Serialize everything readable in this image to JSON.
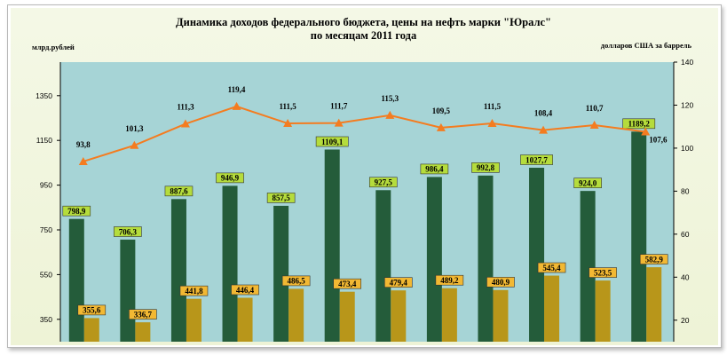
{
  "colors": {
    "plot_bg": "#a6d4d6",
    "revenue_bar": "#245c3a",
    "revenue_label_bg": "#b5dc3c",
    "price_bar": "#b8961a",
    "price_label_bg": "#f2b833",
    "oil_line": "#f47c20"
  },
  "chart_data": {
    "type": "bar",
    "title": "Динамика доходов федерального бюджета, цены на нефть марки \"Юралс\"",
    "subtitle": "по месяцам  2011 года",
    "ylabel_left": "млрд.рублей",
    "ylabel_right": "долларов США за баррель",
    "grid": false,
    "y_left_ticks": [
      "350",
      "550",
      "750",
      "950",
      "1150",
      "1350"
    ],
    "y_left_range": [
      250,
      1500
    ],
    "y_right_ticks": [
      "20",
      "40",
      "60",
      "80",
      "100",
      "120",
      "140"
    ],
    "y_right_range": [
      10,
      140
    ],
    "series": [
      {
        "kind": "bar",
        "axis": "left",
        "values": [
          798.9,
          706.3,
          887.6,
          946.9,
          857.5,
          1109.1,
          927.5,
          986.4,
          992.8,
          1027.7,
          924.0,
          1189.2
        ],
        "labels": [
          "798,9",
          "706,3",
          "887,6",
          "946,9",
          "857,5",
          "1109,1",
          "927,5",
          "986,4",
          "992,8",
          "1027,7",
          "924,0",
          "1189,2"
        ]
      },
      {
        "kind": "bar",
        "axis": "left",
        "values": [
          355.6,
          336.7,
          441.8,
          446.4,
          486.5,
          473.4,
          479.4,
          489.2,
          480.9,
          545.4,
          523.5,
          582.9
        ],
        "labels": [
          "355,6",
          "336,7",
          "441,8",
          "446,4",
          "486,5",
          "473,4",
          "479,4",
          "489,2",
          "480,9",
          "545,4",
          "523,5",
          "582,9"
        ]
      },
      {
        "kind": "line",
        "axis": "right",
        "values": [
          93.8,
          101.3,
          111.3,
          119.4,
          111.5,
          111.7,
          115.3,
          109.5,
          111.5,
          108.4,
          110.7,
          107.6
        ],
        "labels": [
          "93,8",
          "101,3",
          "111,3",
          "119,4",
          "111,5",
          "111,7",
          "115,3",
          "109,5",
          "111,5",
          "108,4",
          "110,7",
          "107,6"
        ]
      }
    ]
  }
}
